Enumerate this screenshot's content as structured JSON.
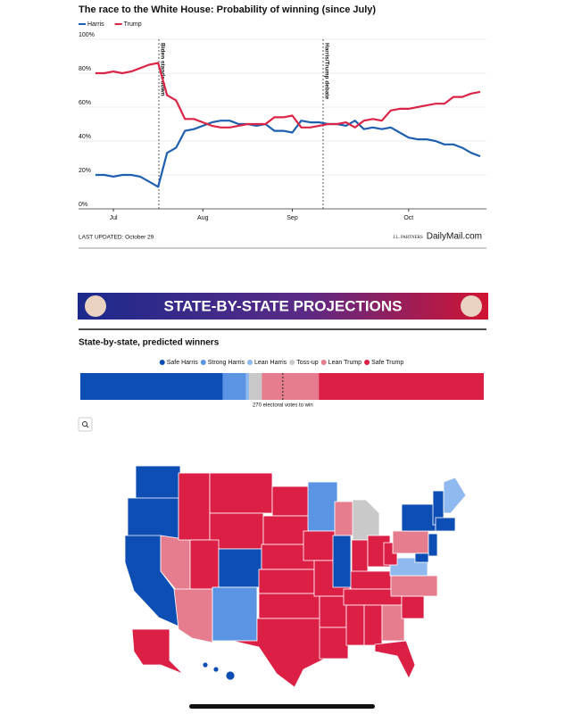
{
  "chart_data": [
    {
      "type": "line",
      "title": "The race to the White House: Probability of winning (since July)",
      "categories": [
        null,
        null,
        "Jul",
        null,
        null,
        null,
        null,
        null,
        null,
        null,
        null,
        null,
        "Aug",
        null,
        null,
        null,
        null,
        null,
        null,
        null,
        null,
        null,
        "Sep",
        null,
        null,
        null,
        null,
        null,
        null,
        null,
        null,
        null,
        null,
        null,
        null,
        "Oct",
        null,
        null,
        null,
        null,
        null,
        null,
        null,
        null
      ],
      "series": [
        {
          "name": "Harris",
          "color": "#1f5fb0",
          "values": [
            20,
            20,
            19,
            20,
            20,
            19,
            16,
            13,
            33,
            36,
            46,
            47,
            49,
            51,
            52,
            52,
            50,
            50,
            49,
            50,
            46,
            46,
            45,
            52,
            51,
            51,
            50,
            50,
            49,
            52,
            47,
            48,
            47,
            48,
            45,
            42,
            41,
            41,
            40,
            38,
            38,
            36,
            33,
            31
          ]
        },
        {
          "name": "Trump",
          "color": "#dc2446",
          "values": [
            80,
            80,
            81,
            80,
            81,
            83,
            85,
            86,
            67,
            64,
            53,
            53,
            51,
            49,
            48,
            48,
            49,
            50,
            50,
            50,
            54,
            54,
            55,
            48,
            48,
            49,
            50,
            50,
            51,
            48,
            52,
            53,
            52,
            58,
            59,
            59,
            60,
            61,
            62,
            62,
            66,
            66,
            68,
            69
          ]
        }
      ],
      "ylim": [
        0,
        100
      ],
      "yticks": [
        {
          "value": 0,
          "label": "0%"
        },
        {
          "value": 20,
          "label": "20%"
        },
        {
          "value": 40,
          "label": "40%"
        },
        {
          "value": 60,
          "label": "60%"
        },
        {
          "value": 80,
          "label": "80%"
        },
        {
          "value": 100,
          "label": "100%"
        }
      ],
      "grid": true,
      "annotations": [
        "Biden stands down",
        "Harris/Trump debate"
      ]
    },
    {
      "type": "stacked_bar",
      "title": "State-by-state, predicted winners",
      "series": [
        {
          "name": "Safe Harris",
          "color": "#0d4eb4",
          "values": [
            190
          ]
        },
        {
          "name": "Strong Harris",
          "color": "#5b94e2",
          "values": [
            31
          ]
        },
        {
          "name": "Lean Harris",
          "color": "#8fb9ef",
          "values": [
            4
          ]
        },
        {
          "name": "Toss-up",
          "color": "#c9c9c9",
          "values": [
            17
          ]
        },
        {
          "name": "Lean Trump",
          "color": "#e57d8e",
          "values": [
            76
          ]
        },
        {
          "name": "Safe Trump",
          "color": "#dc1f45",
          "values": [
            220
          ]
        }
      ],
      "xlim": [
        0,
        538
      ],
      "threshold": 270,
      "threshold_label": "270 electoral votes to win"
    }
  ],
  "footer": {
    "updated": "LAST UPDATED: October 29",
    "source": "J.L. PARTNERS",
    "publisher": "DailyMail.com"
  },
  "banner": "STATE-BY-STATE PROJECTIONS"
}
